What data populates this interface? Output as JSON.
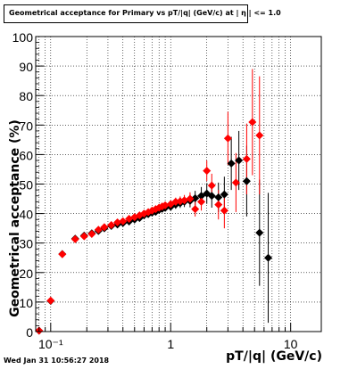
{
  "title": "Geometrical acceptance for Primary vs pT/|q| (GeV/c) at | η | <= 1.0",
  "footer": "Wed Jan 31 10:56:27 2018",
  "chart_data": {
    "type": "scatter",
    "title": "Geometrical acceptance for Primary vs pT/|q| (GeV/c) at | η | <= 1.0",
    "xlabel": "pT/|q| (GeV/c)",
    "ylabel": "Geometrical acceptance (%)",
    "xscale": "log",
    "xlim": [
      0.075,
      18
    ],
    "ylim": [
      0,
      100
    ],
    "grid": true,
    "xticks": [
      {
        "v": 0.1,
        "label": "10⁻¹"
      },
      {
        "v": 1,
        "label": "1"
      },
      {
        "v": 10,
        "label": "10"
      }
    ],
    "yticks": [
      0,
      10,
      20,
      30,
      40,
      50,
      60,
      70,
      80,
      90,
      100
    ],
    "series": [
      {
        "color": "#000000",
        "points": [
          [
            0.08,
            0.3,
            0
          ],
          [
            0.1,
            10.4,
            0.5
          ],
          [
            0.125,
            26.3,
            0.5
          ],
          [
            0.16,
            31.5,
            0.4
          ],
          [
            0.19,
            32.5,
            0.4
          ],
          [
            0.22,
            33.3,
            0.4
          ],
          [
            0.25,
            34.1,
            0.4
          ],
          [
            0.28,
            35,
            0.4
          ],
          [
            0.32,
            35.8,
            0.4
          ],
          [
            0.36,
            36.3,
            0.4
          ],
          [
            0.4,
            36.8,
            0.5
          ],
          [
            0.45,
            37.3,
            0.5
          ],
          [
            0.5,
            38,
            0.6
          ],
          [
            0.55,
            38.5,
            0.6
          ],
          [
            0.6,
            39.4,
            0.7
          ],
          [
            0.65,
            39.8,
            0.8
          ],
          [
            0.7,
            40.3,
            0.8
          ],
          [
            0.75,
            40.6,
            0.9
          ],
          [
            0.8,
            41.2,
            1
          ],
          [
            0.85,
            41.6,
            1
          ],
          [
            0.9,
            41.9,
            1.1
          ],
          [
            1.0,
            42.3,
            1.2
          ],
          [
            1.1,
            43,
            1.4
          ],
          [
            1.2,
            43.5,
            1.6
          ],
          [
            1.3,
            44,
            1.8
          ],
          [
            1.45,
            44.3,
            2.2
          ],
          [
            1.6,
            45.2,
            2.5
          ],
          [
            1.8,
            46,
            3
          ],
          [
            2.0,
            46.8,
            3.5
          ],
          [
            2.2,
            46,
            4
          ],
          [
            2.5,
            45.5,
            5
          ],
          [
            2.8,
            46.5,
            6
          ],
          [
            3.2,
            57,
            9
          ],
          [
            3.7,
            58,
            10
          ],
          [
            4.3,
            51,
            12
          ],
          [
            5.5,
            33.5,
            18
          ],
          [
            6.5,
            25,
            22
          ]
        ]
      },
      {
        "color": "#ff0000",
        "points": [
          [
            0.08,
            0.3,
            0
          ],
          [
            0.1,
            10.5,
            0.5
          ],
          [
            0.125,
            26.2,
            0.5
          ],
          [
            0.16,
            31.3,
            0.4
          ],
          [
            0.19,
            32.3,
            0.4
          ],
          [
            0.22,
            33.1,
            0.4
          ],
          [
            0.25,
            34.5,
            0.4
          ],
          [
            0.28,
            35.4,
            0.4
          ],
          [
            0.32,
            36.1,
            0.4
          ],
          [
            0.36,
            37,
            0.5
          ],
          [
            0.4,
            37.4,
            0.5
          ],
          [
            0.45,
            38.2,
            0.5
          ],
          [
            0.5,
            38.8,
            0.6
          ],
          [
            0.55,
            39.4,
            0.6
          ],
          [
            0.6,
            40,
            0.7
          ],
          [
            0.65,
            40.5,
            0.8
          ],
          [
            0.7,
            41,
            0.8
          ],
          [
            0.75,
            41.5,
            0.9
          ],
          [
            0.8,
            42,
            1
          ],
          [
            0.85,
            42.4,
            1
          ],
          [
            0.9,
            42.8,
            1.1
          ],
          [
            1.0,
            43.2,
            1.2
          ],
          [
            1.1,
            44,
            1.4
          ],
          [
            1.2,
            44.2,
            1.6
          ],
          [
            1.3,
            44.5,
            1.8
          ],
          [
            1.45,
            45,
            2.2
          ],
          [
            1.6,
            41.5,
            2.5
          ],
          [
            1.8,
            44,
            3
          ],
          [
            2.0,
            54.5,
            3.5
          ],
          [
            2.2,
            49.5,
            4
          ],
          [
            2.5,
            43,
            5
          ],
          [
            2.8,
            41,
            6
          ],
          [
            3.0,
            65.5,
            9
          ],
          [
            3.5,
            50.5,
            10
          ],
          [
            4.3,
            58.5,
            12
          ],
          [
            4.8,
            71,
            18
          ],
          [
            5.5,
            66.5,
            20
          ]
        ]
      }
    ]
  }
}
